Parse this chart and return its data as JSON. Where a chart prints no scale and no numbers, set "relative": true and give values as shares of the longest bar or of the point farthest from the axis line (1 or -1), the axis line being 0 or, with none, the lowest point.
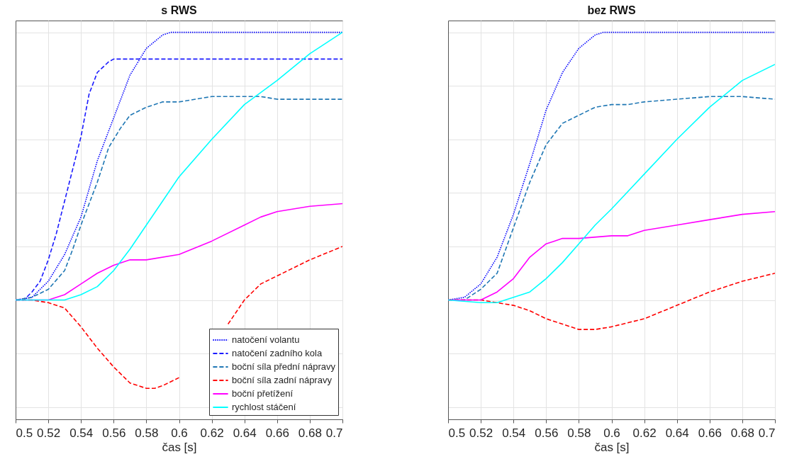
{
  "chart_data": [
    {
      "type": "line",
      "title": "s RWS",
      "xlabel": "čas [s]",
      "relative": true,
      "xlim": [
        0.5,
        0.7
      ],
      "xticks": [
        0.5,
        0.52,
        0.54,
        0.56,
        0.58,
        0.6,
        0.62,
        0.64,
        0.66,
        0.68,
        0.7
      ],
      "grid": true,
      "legend": "bottom right",
      "series": [
        {
          "name": "natočení volantu",
          "color": "#0000ff",
          "line_style": "dotted",
          "x": [
            0.5,
            0.51,
            0.52,
            0.53,
            0.54,
            0.55,
            0.56,
            0.57,
            0.58,
            0.59,
            0.595,
            0.7
          ],
          "values": [
            0,
            0.01,
            0.07,
            0.17,
            0.31,
            0.52,
            0.68,
            0.84,
            0.94,
            0.99,
            1,
            1
          ]
        },
        {
          "name": "natočení zadního kola",
          "color": "#1a1aff",
          "line_style": "dashed",
          "x": [
            0.5,
            0.505,
            0.51,
            0.515,
            0.52,
            0.525,
            0.53,
            0.535,
            0.54,
            0.545,
            0.55,
            0.557,
            0.56,
            0.7
          ],
          "values": [
            0,
            0,
            0.03,
            0.07,
            0.15,
            0.25,
            0.37,
            0.49,
            0.61,
            0.77,
            0.85,
            0.89,
            0.9,
            0.9
          ]
        },
        {
          "name": "boční síla přední nápravy",
          "color": "#1f77b4",
          "line_style": "dashed",
          "x": [
            0.5,
            0.51,
            0.52,
            0.53,
            0.535,
            0.54,
            0.55,
            0.557,
            0.56,
            0.564,
            0.57,
            0.58,
            0.59,
            0.6,
            0.62,
            0.64,
            0.65,
            0.66,
            0.68,
            0.7
          ],
          "values": [
            0,
            0.01,
            0.04,
            0.11,
            0.19,
            0.28,
            0.44,
            0.57,
            0.6,
            0.64,
            0.69,
            0.72,
            0.74,
            0.74,
            0.76,
            0.76,
            0.76,
            0.75,
            0.75,
            0.75
          ]
        },
        {
          "name": "boční síla zadní nápravy",
          "color": "#ff0000",
          "line_style": "dashed",
          "x": [
            0.5,
            0.51,
            0.52,
            0.53,
            0.54,
            0.55,
            0.56,
            0.57,
            0.58,
            0.585,
            0.59,
            0.6,
            0.61,
            0.62,
            0.63,
            0.64,
            0.65,
            0.66,
            0.68,
            0.7
          ],
          "values": [
            0,
            0,
            -0.01,
            -0.03,
            -0.1,
            -0.18,
            -0.25,
            -0.31,
            -0.33,
            -0.33,
            -0.32,
            -0.29,
            null,
            null,
            -0.09,
            0,
            0.06,
            0.09,
            0.15,
            0.2
          ]
        },
        {
          "name": "boční přetížení",
          "color": "#ff00ff",
          "line_style": "solid",
          "x": [
            0.5,
            0.52,
            0.53,
            0.54,
            0.55,
            0.56,
            0.57,
            0.58,
            0.6,
            0.62,
            0.64,
            0.65,
            0.66,
            0.68,
            0.7
          ],
          "values": [
            0,
            0,
            0.02,
            0.06,
            0.1,
            0.13,
            0.15,
            0.15,
            0.17,
            0.22,
            0.28,
            0.31,
            0.33,
            0.35,
            0.36
          ]
        },
        {
          "name": "rychlost stáčení",
          "color": "#00ffff",
          "line_style": "solid",
          "x": [
            0.5,
            0.52,
            0.53,
            0.54,
            0.55,
            0.56,
            0.57,
            0.58,
            0.59,
            0.6,
            0.62,
            0.64,
            0.66,
            0.68,
            0.7
          ],
          "values": [
            0,
            0,
            0,
            0.02,
            0.05,
            0.11,
            0.19,
            0.28,
            0.37,
            0.46,
            0.6,
            0.73,
            0.82,
            0.92,
            1
          ]
        }
      ]
    },
    {
      "type": "line",
      "title": "bez RWS",
      "xlabel": "čas [s]",
      "relative": true,
      "xlim": [
        0.5,
        0.7
      ],
      "xticks": [
        0.5,
        0.52,
        0.54,
        0.56,
        0.58,
        0.6,
        0.62,
        0.64,
        0.66,
        0.68,
        0.7
      ],
      "grid": true,
      "series": [
        {
          "color": "#0000ff",
          "line_style": "dotted",
          "x": [
            0.5,
            0.51,
            0.52,
            0.53,
            0.54,
            0.55,
            0.56,
            0.57,
            0.58,
            0.59,
            0.595,
            0.7
          ],
          "values": [
            0,
            0.01,
            0.06,
            0.16,
            0.32,
            0.51,
            0.71,
            0.85,
            0.94,
            0.99,
            1,
            1
          ]
        },
        {
          "color": "#1f77b4",
          "line_style": "dashed",
          "x": [
            0.5,
            0.51,
            0.52,
            0.53,
            0.54,
            0.55,
            0.56,
            0.57,
            0.58,
            0.59,
            0.6,
            0.61,
            0.62,
            0.64,
            0.66,
            0.68,
            0.7
          ],
          "values": [
            0,
            0,
            0.04,
            0.1,
            0.27,
            0.44,
            0.58,
            0.66,
            0.69,
            0.72,
            0.73,
            0.73,
            0.74,
            0.75,
            0.76,
            0.76,
            0.75
          ]
        },
        {
          "color": "#ff0000",
          "line_style": "dashed",
          "x": [
            0.5,
            0.52,
            0.53,
            0.54,
            0.55,
            0.56,
            0.57,
            0.58,
            0.59,
            0.6,
            0.62,
            0.64,
            0.66,
            0.68,
            0.7
          ],
          "values": [
            0,
            0,
            -0.01,
            -0.02,
            -0.04,
            -0.07,
            -0.09,
            -0.11,
            -0.11,
            -0.1,
            -0.07,
            -0.02,
            0.03,
            0.07,
            0.1
          ]
        },
        {
          "color": "#ff00ff",
          "line_style": "solid",
          "x": [
            0.5,
            0.52,
            0.53,
            0.54,
            0.55,
            0.56,
            0.565,
            0.57,
            0.58,
            0.6,
            0.61,
            0.62,
            0.64,
            0.66,
            0.68,
            0.7
          ],
          "values": [
            0,
            0,
            0.03,
            0.08,
            0.16,
            0.21,
            0.22,
            0.23,
            0.23,
            0.24,
            0.24,
            0.26,
            0.28,
            0.3,
            0.32,
            0.33
          ]
        },
        {
          "color": "#00ffff",
          "line_style": "solid",
          "x": [
            0.5,
            0.52,
            0.53,
            0.54,
            0.55,
            0.56,
            0.57,
            0.58,
            0.59,
            0.6,
            0.62,
            0.64,
            0.66,
            0.68,
            0.7
          ],
          "values": [
            0,
            -0.01,
            -0.01,
            0.01,
            0.03,
            0.08,
            0.14,
            0.21,
            0.28,
            0.34,
            0.47,
            0.6,
            0.72,
            0.82,
            0.88
          ]
        }
      ]
    }
  ]
}
